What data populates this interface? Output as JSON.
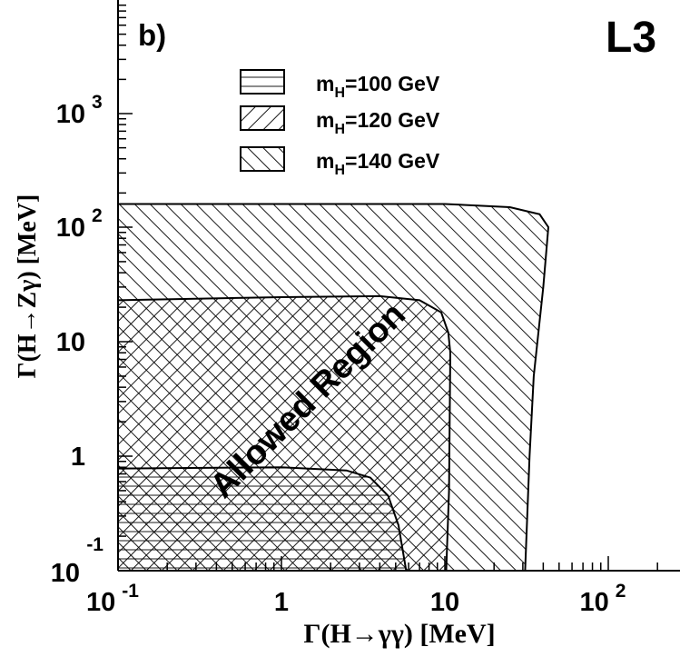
{
  "chart_data": {
    "type": "area",
    "panel_label": "b)",
    "experiment_label": "L3",
    "xlabel": "Γ(H→γγ) [MeV]",
    "ylabel": "Γ(H→Zγ) [MeV]",
    "x_scale": "log",
    "y_scale": "log",
    "xlim": [
      0.1,
      200
    ],
    "ylim": [
      0.1,
      10000
    ],
    "x_ticks": [
      {
        "value": 0.1,
        "label_main": "10",
        "label_sup": "-1"
      },
      {
        "value": 1,
        "label_main": "1",
        "label_sup": ""
      },
      {
        "value": 10,
        "label_main": "10",
        "label_sup": ""
      },
      {
        "value": 100,
        "label_main": "10",
        "label_sup": "2"
      }
    ],
    "y_ticks": [
      {
        "value": 0.1,
        "label_main": "10",
        "label_sup": "-1"
      },
      {
        "value": 1,
        "label_main": "1",
        "label_sup": ""
      },
      {
        "value": 10,
        "label_main": "10",
        "label_sup": ""
      },
      {
        "value": 100,
        "label_main": "10",
        "label_sup": "2"
      },
      {
        "value": 1000,
        "label_main": "10",
        "label_sup": "3"
      }
    ],
    "annotation": "Allowed Region",
    "legend_placement": "top-left",
    "series": [
      {
        "name_main": "m",
        "name_sub": "H",
        "name_rest": "=100 GeV",
        "hatch": "horizontal",
        "points": [
          [
            0.1,
            0.1
          ],
          [
            0.1,
            0.78
          ],
          [
            1.0,
            0.8
          ],
          [
            2.5,
            0.75
          ],
          [
            3.5,
            0.65
          ],
          [
            4.5,
            0.45
          ],
          [
            5.2,
            0.25
          ],
          [
            5.8,
            0.1
          ]
        ]
      },
      {
        "name_main": "m",
        "name_sub": "H",
        "name_rest": "=120 GeV",
        "hatch": "diagonal-up",
        "points": [
          [
            0.1,
            0.1
          ],
          [
            0.1,
            23
          ],
          [
            1.0,
            24.5
          ],
          [
            4.0,
            25
          ],
          [
            7.0,
            23
          ],
          [
            9.5,
            18
          ],
          [
            10.5,
            12
          ],
          [
            10.8,
            8
          ],
          [
            10.6,
            0.5
          ],
          [
            10.2,
            0.1
          ]
        ]
      },
      {
        "name_main": "m",
        "name_sub": "H",
        "name_rest": "=140 GeV",
        "hatch": "diagonal-down",
        "points": [
          [
            0.1,
            0.1
          ],
          [
            0.1,
            160
          ],
          [
            1.0,
            160
          ],
          [
            10.0,
            160
          ],
          [
            25.0,
            150
          ],
          [
            38.0,
            130
          ],
          [
            43.0,
            100
          ],
          [
            40.0,
            30
          ],
          [
            35.0,
            5
          ],
          [
            33.0,
            1
          ],
          [
            31.0,
            0.1
          ]
        ]
      }
    ]
  }
}
